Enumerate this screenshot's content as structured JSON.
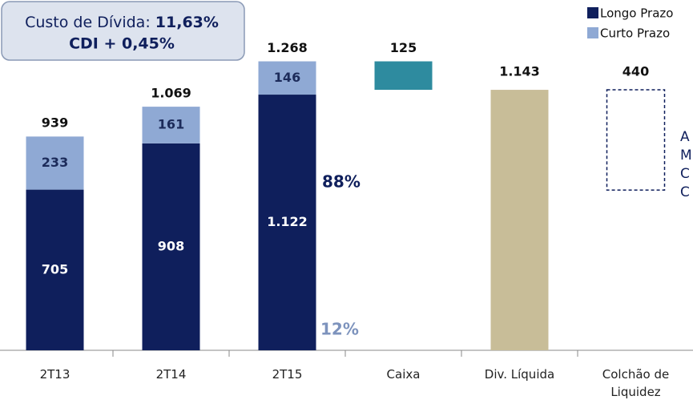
{
  "chart_data": {
    "type": "bar",
    "stacked": true,
    "title_box": {
      "label": "Custo de Dívida:",
      "rate": "11,63%",
      "spread": "CDI + 0,45%"
    },
    "categories": [
      "2T13",
      "2T14",
      "2T15",
      "Caixa",
      "Div. Líquida",
      "Colchão de Liquidez"
    ],
    "series": [
      {
        "name": "Longo Prazo",
        "color": "#0f1f5c",
        "values": [
          705,
          908,
          1122,
          null,
          null,
          null
        ],
        "value_labels": [
          "705",
          "908",
          "1.122",
          null,
          null,
          null
        ]
      },
      {
        "name": "Curto Prazo",
        "color": "#8fa9d4",
        "values": [
          233,
          161,
          146,
          null,
          null,
          null
        ]
      }
    ],
    "totals": {
      "values": [
        939,
        1069,
        1268,
        null,
        null,
        null
      ],
      "value_labels": [
        "939",
        "1.069",
        "1.268",
        null,
        null,
        null
      ]
    },
    "caixa": {
      "value": 125,
      "color": "#2e8b9f"
    },
    "div_liquida": {
      "value": 1143,
      "label": "1.143",
      "color": "#c8bd98"
    },
    "colchao": {
      "value": 440,
      "color": "#0f1f5c"
    },
    "shares": [
      "88%",
      "12%"
    ],
    "side_note": [
      "A",
      "M",
      "C",
      "C"
    ],
    "ylim": [
      0,
      1400
    ]
  }
}
